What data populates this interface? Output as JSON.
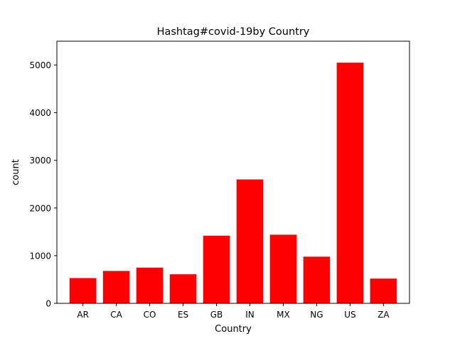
{
  "chart_data": {
    "type": "bar",
    "title": "Hashtag#covid-19by Country",
    "xlabel": "Country",
    "ylabel": "count",
    "categories": [
      "AR",
      "CA",
      "CO",
      "ES",
      "GB",
      "IN",
      "MX",
      "NG",
      "US",
      "ZA"
    ],
    "values": [
      530,
      680,
      750,
      610,
      1420,
      2600,
      1440,
      980,
      5050,
      520
    ],
    "ylim": [
      0,
      5500
    ],
    "yticks": [
      0,
      1000,
      2000,
      3000,
      4000,
      5000
    ],
    "bar_color": "#ff0000",
    "grid": false,
    "legend": false
  }
}
